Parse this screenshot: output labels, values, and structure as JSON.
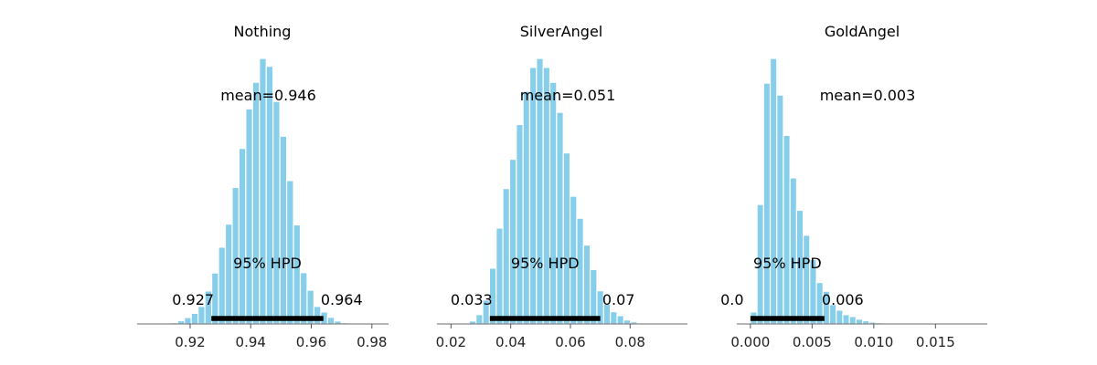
{
  "colors": {
    "bar": "#87ceeb",
    "bar_edge": "#ffffff",
    "hpd": "#000000",
    "axis": "#6a6a6a"
  },
  "chart_data": [
    {
      "type": "bar",
      "title": "Nothing",
      "xlim": [
        0.9025,
        0.9855
      ],
      "ticks": [
        0.92,
        0.94,
        0.96,
        0.98
      ],
      "tick_labels": [
        "0.92",
        "0.94",
        "0.96",
        "0.98"
      ],
      "bin_width": 0.00225,
      "bins_x": [
        0.9125,
        0.91475,
        0.917,
        0.91925,
        0.9215,
        0.92375,
        0.926,
        0.92825,
        0.9305,
        0.93275,
        0.935,
        0.93725,
        0.9395,
        0.94175,
        0.944,
        0.94625,
        0.9485,
        0.95075,
        0.953,
        0.95525,
        0.9575,
        0.95975,
        0.962,
        0.96425,
        0.9665,
        0.96875,
        0.971,
        0.97325
      ],
      "counts": [
        0.003,
        0.005,
        0.012,
        0.024,
        0.04,
        0.066,
        0.124,
        0.192,
        0.289,
        0.376,
        0.514,
        0.661,
        0.81,
        0.91,
        1.0,
        0.97,
        0.838,
        0.707,
        0.54,
        0.373,
        0.193,
        0.127,
        0.066,
        0.045,
        0.025,
        0.011,
        0.005,
        0.002
      ],
      "mean_label": "mean=0.946",
      "hpd_label": "95% HPD",
      "hpd": [
        0.927,
        0.964
      ],
      "hpd_low_label": "0.927",
      "hpd_high_label": "0.964"
    },
    {
      "type": "bar",
      "title": "SilverAngel",
      "xlim": [
        0.0153,
        0.0992
      ],
      "ticks": [
        0.02,
        0.04,
        0.06,
        0.08
      ],
      "tick_labels": [
        "0.02",
        "0.04",
        "0.06",
        "0.08"
      ],
      "bin_width": 0.00225,
      "bins_x": [
        0.025,
        0.02725,
        0.0295,
        0.03175,
        0.034,
        0.03625,
        0.0385,
        0.04075,
        0.043,
        0.04525,
        0.0475,
        0.04975,
        0.052,
        0.05425,
        0.0565,
        0.05875,
        0.061,
        0.06325,
        0.0655,
        0.06775,
        0.07,
        0.07225,
        0.0745,
        0.07675,
        0.079,
        0.08125,
        0.0835,
        0.08575
      ],
      "counts": [
        0.003,
        0.011,
        0.035,
        0.09,
        0.21,
        0.361,
        0.51,
        0.62,
        0.751,
        0.876,
        0.966,
        1.0,
        0.966,
        0.91,
        0.797,
        0.644,
        0.481,
        0.398,
        0.297,
        0.205,
        0.125,
        0.074,
        0.046,
        0.031,
        0.015,
        0.008,
        0.003,
        0.001
      ],
      "mean_label": "mean=0.051",
      "hpd_label": "95% HPD",
      "hpd": [
        0.033,
        0.07
      ],
      "hpd_low_label": "0.033",
      "hpd_high_label": "0.07"
    },
    {
      "type": "bar",
      "title": "GoldAngel",
      "xlim": [
        -0.0011,
        0.0192
      ],
      "ticks": [
        0.0,
        0.005,
        0.01,
        0.015
      ],
      "tick_labels": [
        "0.000",
        "0.005",
        "0.010",
        "0.015"
      ],
      "bin_width": 0.000535,
      "bins_x": [
        0.000268,
        0.000803,
        0.001338,
        0.001873,
        0.002408,
        0.002943,
        0.003478,
        0.004013,
        0.004548,
        0.005083,
        0.005618,
        0.006153,
        0.006688,
        0.007223,
        0.007758,
        0.008293,
        0.008828,
        0.009363,
        0.009898,
        0.010433,
        0.010968,
        0.011503,
        0.012038,
        0.012573,
        0.013108,
        0.013643,
        0.014178,
        0.014713,
        0.015248,
        0.015783,
        0.016318,
        0.016853
      ],
      "counts": [
        0.045,
        0.45,
        0.907,
        1.0,
        0.862,
        0.71,
        0.55,
        0.428,
        0.334,
        0.242,
        0.156,
        0.123,
        0.073,
        0.052,
        0.035,
        0.028,
        0.018,
        0.012,
        0.007,
        0.005,
        0.003,
        0.002,
        0.001,
        0.001,
        0.0,
        0.0,
        0.0,
        0.0,
        0.0,
        0.0,
        0.0,
        0.001
      ],
      "mean_label": "mean=0.003",
      "hpd_label": "95% HPD",
      "hpd": [
        0.0,
        0.006
      ],
      "hpd_low_label": "0.0",
      "hpd_high_label": "0.006"
    }
  ]
}
